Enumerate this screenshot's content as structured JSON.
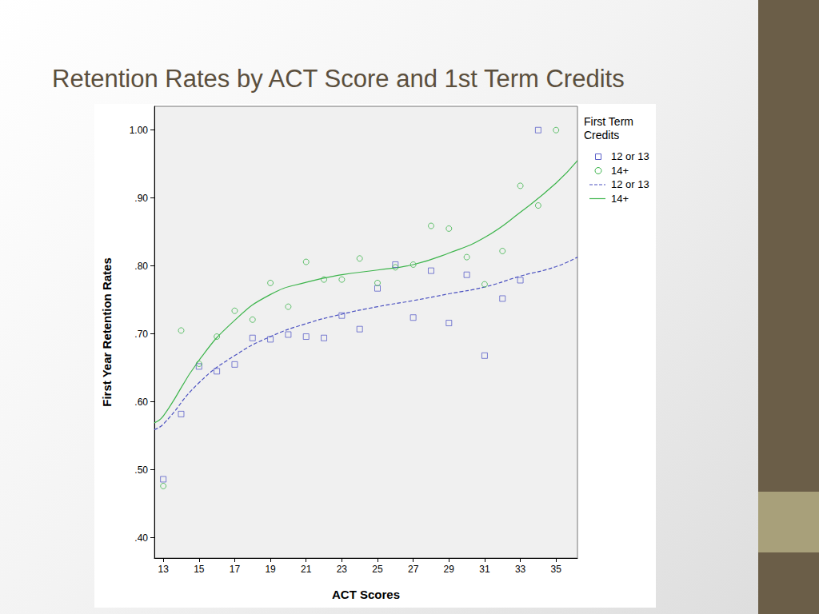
{
  "chart_data": {
    "type": "scatter",
    "title": "Retention Rates by ACT Score and 1st Term Credits",
    "x_label": "ACT Scores",
    "y_label": "First Year Retention Rates",
    "legend_title": "First Term Credits",
    "legend": "right",
    "grid": false,
    "xlim": [
      12.5,
      36.2
    ],
    "xticks": [
      13,
      15,
      17,
      19,
      21,
      23,
      25,
      27,
      29,
      31,
      33,
      35
    ],
    "ylim": [
      0.37,
      1.035
    ],
    "yticks": [
      {
        "value": 0.4,
        "label": ".40"
      },
      {
        "value": 0.5,
        "label": ".50"
      },
      {
        "value": 0.6,
        "label": ".60"
      },
      {
        "value": 0.7,
        "label": ".70"
      },
      {
        "value": 0.8,
        "label": ".80"
      },
      {
        "value": 0.9,
        "label": ".90"
      },
      {
        "value": 1.0,
        "label": "1.00"
      }
    ],
    "series": [
      {
        "name": "12 or 13",
        "type": "scatter",
        "marker": "square",
        "color": "#5a5fc8",
        "x": [
          13,
          14,
          15,
          16,
          17,
          18,
          19,
          20,
          21,
          22,
          23,
          24,
          25,
          26,
          27,
          28,
          29,
          30,
          31,
          32,
          33,
          34
        ],
        "values": [
          0.486,
          0.582,
          0.652,
          0.645,
          0.655,
          0.694,
          0.692,
          0.699,
          0.696,
          0.694,
          0.727,
          0.707,
          0.767,
          0.802,
          0.724,
          0.793,
          0.716,
          0.787,
          0.668,
          0.752,
          0.779,
          1.0
        ]
      },
      {
        "name": "14+",
        "type": "scatter",
        "marker": "circle",
        "color": "#3cb44b",
        "x": [
          13,
          14,
          15,
          16,
          17,
          18,
          19,
          20,
          21,
          22,
          23,
          24,
          25,
          26,
          27,
          28,
          29,
          30,
          31,
          32,
          33,
          34,
          35
        ],
        "values": [
          0.476,
          0.705,
          0.656,
          0.696,
          0.734,
          0.721,
          0.775,
          0.74,
          0.806,
          0.78,
          0.78,
          0.811,
          0.775,
          0.798,
          0.802,
          0.859,
          0.855,
          0.813,
          0.773,
          0.822,
          0.918,
          0.889,
          1.0
        ]
      },
      {
        "name": "12 or 13",
        "type": "line",
        "line_style": "dashed",
        "color": "#4a50c0",
        "x": [
          12.5,
          13,
          15,
          17,
          19,
          21,
          23,
          25,
          27,
          29,
          31,
          33,
          35,
          36.2
        ],
        "values": [
          0.559,
          0.567,
          0.628,
          0.668,
          0.696,
          0.715,
          0.729,
          0.74,
          0.749,
          0.759,
          0.769,
          0.785,
          0.799,
          0.813
        ]
      },
      {
        "name": "14+",
        "type": "line",
        "line_style": "solid",
        "color": "#3cb44b",
        "x": [
          12.5,
          13,
          15,
          17,
          19,
          21,
          23,
          25,
          27,
          29,
          31,
          33,
          35,
          36.2
        ],
        "values": [
          0.569,
          0.579,
          0.661,
          0.72,
          0.758,
          0.776,
          0.787,
          0.794,
          0.802,
          0.819,
          0.842,
          0.879,
          0.922,
          0.955
        ]
      }
    ]
  }
}
